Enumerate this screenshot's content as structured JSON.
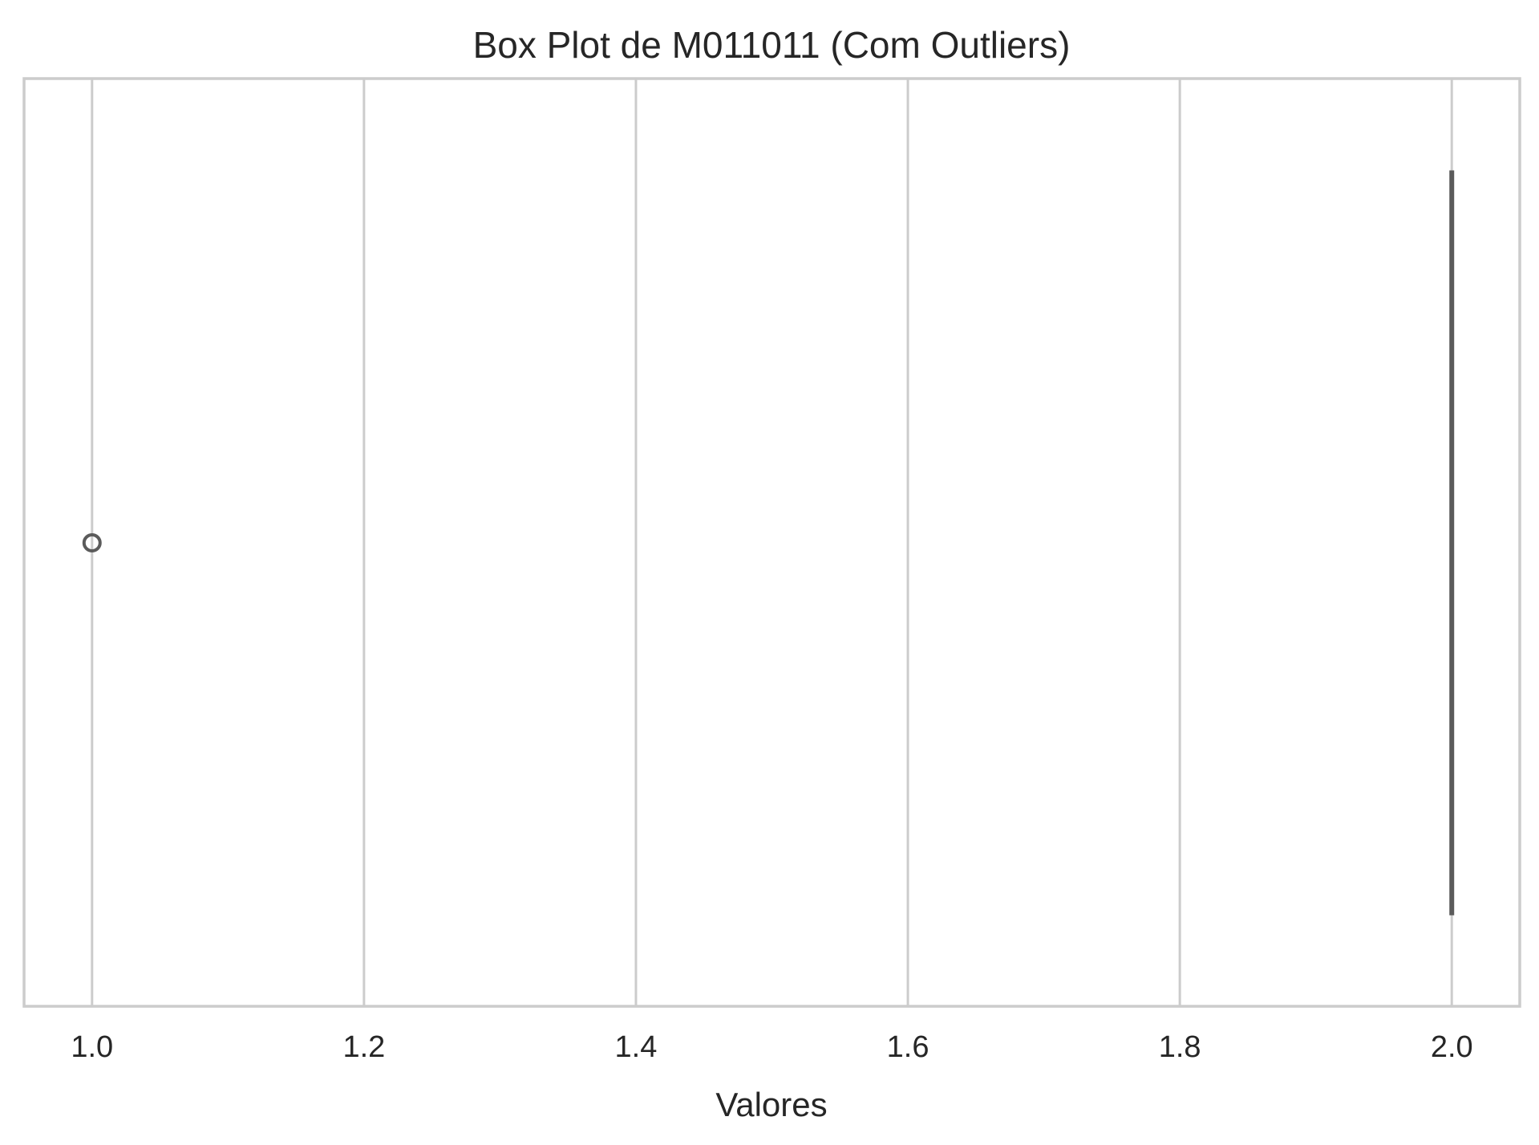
{
  "chart_data": {
    "type": "box",
    "orientation": "horizontal",
    "title": "Box Plot de M011011 (Com Outliers)",
    "xlabel": "Valores",
    "ylabel": "",
    "xlim": [
      0.95,
      2.05
    ],
    "xticks": [
      1.0,
      1.2,
      1.4,
      1.6,
      1.8,
      2.0
    ],
    "xtick_labels": [
      "1.0",
      "1.2",
      "1.4",
      "1.6",
      "1.8",
      "2.0"
    ],
    "grid": true,
    "box": {
      "min": 2.0,
      "q1": 2.0,
      "median": 2.0,
      "q3": 2.0,
      "max": 2.0
    },
    "outliers": [
      1.0
    ],
    "colors": {
      "box_line": "#5b5b5b",
      "grid": "#cccccc",
      "text": "#262626"
    }
  }
}
